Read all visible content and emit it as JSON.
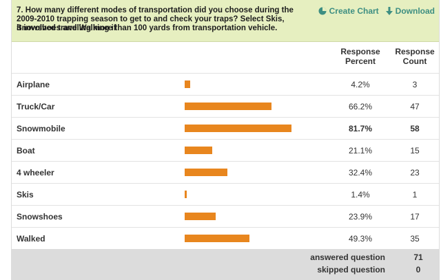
{
  "question": {
    "line1": "7. How many different modes of transportation did you choose during the 2009-2010 trapping season to get to and check your traps? Select Skis, Snowshoes and Walking if",
    "line2": "it involved traveling more than 100 yards from transportation vehicle."
  },
  "actions": {
    "create_chart": "Create Chart",
    "download": "Download"
  },
  "columns": {
    "percent_line1": "Response",
    "percent_line2": "Percent",
    "count_line1": "Response",
    "count_line2": "Count"
  },
  "rows": [
    {
      "label": "Airplane",
      "percent": "4.2%",
      "count": "3"
    },
    {
      "label": "Truck/Car",
      "percent": "66.2%",
      "count": "47"
    },
    {
      "label": "Snowmobile",
      "percent": "81.7%",
      "count": "58"
    },
    {
      "label": "Boat",
      "percent": "21.1%",
      "count": "15"
    },
    {
      "label": "4 wheeler",
      "percent": "32.4%",
      "count": "23"
    },
    {
      "label": "Skis",
      "percent": "1.4%",
      "count": "1"
    },
    {
      "label": "Snowshoes",
      "percent": "23.9%",
      "count": "17"
    },
    {
      "label": "Walked",
      "percent": "49.3%",
      "count": "35"
    }
  ],
  "footer": {
    "answered_label": "answered question",
    "answered_value": "71",
    "skipped_label": "skipped question",
    "skipped_value": "0"
  },
  "colors": {
    "bar": "#e8861e",
    "header_bg": "#e6efc0",
    "action_link": "#3d8e82",
    "footer_bg": "#dcdcdc"
  },
  "icons": {
    "create_chart": "pie-chart-icon",
    "download": "download-arrow-icon"
  },
  "chart_data": {
    "type": "bar",
    "orientation": "horizontal",
    "categories": [
      "Airplane",
      "Truck/Car",
      "Snowmobile",
      "Boat",
      "4 wheeler",
      "Skis",
      "Snowshoes",
      "Walked"
    ],
    "values": [
      4.2,
      66.2,
      81.7,
      21.1,
      32.4,
      1.4,
      23.9,
      49.3
    ],
    "counts": [
      3,
      47,
      58,
      15,
      23,
      1,
      17,
      35
    ],
    "xlim": [
      0,
      100
    ]
  }
}
